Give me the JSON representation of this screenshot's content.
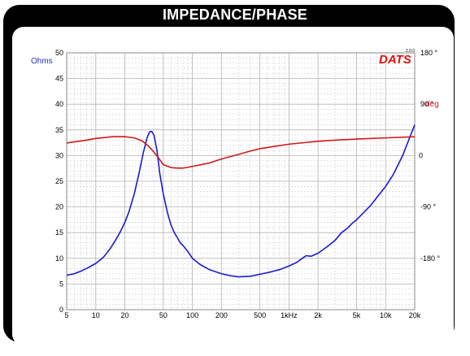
{
  "chart_data": {
    "type": "line",
    "title": "IMPEDANCE/PHASE",
    "brand": "DATS",
    "brand_version": "2.0.0",
    "x_scale": "log",
    "xlim": [
      5,
      20000
    ],
    "x_ticks": [
      {
        "v": 5,
        "label": "5"
      },
      {
        "v": 10,
        "label": "10"
      },
      {
        "v": 20,
        "label": "20"
      },
      {
        "v": 50,
        "label": "50"
      },
      {
        "v": 100,
        "label": "100"
      },
      {
        "v": 200,
        "label": "200"
      },
      {
        "v": 500,
        "label": "500"
      },
      {
        "v": 1000,
        "label": "1kHz"
      },
      {
        "v": 2000,
        "label": "2k"
      },
      {
        "v": 5000,
        "label": "5k"
      },
      {
        "v": 10000,
        "label": "10k"
      },
      {
        "v": 20000,
        "label": "20k"
      }
    ],
    "ylabel_left": "Ohms",
    "ylim_left": [
      0,
      50
    ],
    "y_ticks_left": [
      "0",
      "5",
      "10",
      "15",
      "20",
      "25",
      "30",
      "35",
      "40",
      "45",
      "50"
    ],
    "ylim_right": [
      -270,
      180
    ],
    "y_ticks_right": [
      {
        "v": 180,
        "label": "180 °",
        "color": "#000000"
      },
      {
        "v": 90,
        "label": "90 °",
        "color": "#000000"
      },
      {
        "v": 0,
        "label": "0",
        "color": "#000000"
      },
      {
        "v": -90,
        "label": "-90 °",
        "color": "#000000"
      },
      {
        "v": -180,
        "label": "-180 °",
        "color": "#000000"
      }
    ],
    "ylabel_right": "deg",
    "grid": true,
    "series": [
      {
        "name": "Impedance",
        "axis": "left",
        "color": "#1a1ad0",
        "points": [
          [
            5,
            6.7
          ],
          [
            6,
            7.0
          ],
          [
            7,
            7.5
          ],
          [
            8,
            8.0
          ],
          [
            10,
            9.0
          ],
          [
            12,
            10.2
          ],
          [
            14,
            11.8
          ],
          [
            16,
            13.5
          ],
          [
            18,
            15.2
          ],
          [
            20,
            17.0
          ],
          [
            22,
            19.0
          ],
          [
            25,
            22.5
          ],
          [
            28,
            26.5
          ],
          [
            31,
            30.5
          ],
          [
            34,
            33.5
          ],
          [
            36,
            34.6
          ],
          [
            38,
            34.7
          ],
          [
            40,
            34.0
          ],
          [
            43,
            31.0
          ],
          [
            46,
            26.5
          ],
          [
            50,
            22.5
          ],
          [
            55,
            19.0
          ],
          [
            60,
            16.5
          ],
          [
            65,
            15.0
          ],
          [
            70,
            14.0
          ],
          [
            75,
            13.0
          ],
          [
            80,
            12.5
          ],
          [
            90,
            11.3
          ],
          [
            100,
            10.0
          ],
          [
            120,
            8.8
          ],
          [
            150,
            7.8
          ],
          [
            200,
            7.0
          ],
          [
            250,
            6.6
          ],
          [
            300,
            6.4
          ],
          [
            400,
            6.5
          ],
          [
            500,
            6.9
          ],
          [
            600,
            7.2
          ],
          [
            800,
            7.8
          ],
          [
            1000,
            8.5
          ],
          [
            1200,
            9.2
          ],
          [
            1400,
            10.1
          ],
          [
            1500,
            10.5
          ],
          [
            1700,
            10.4
          ],
          [
            2000,
            11.0
          ],
          [
            2500,
            12.3
          ],
          [
            3000,
            13.5
          ],
          [
            3500,
            15.0
          ],
          [
            4000,
            15.8
          ],
          [
            4500,
            16.8
          ],
          [
            5000,
            17.5
          ],
          [
            6000,
            19.0
          ],
          [
            7000,
            20.3
          ],
          [
            8000,
            21.7
          ],
          [
            10000,
            24.0
          ],
          [
            12000,
            26.3
          ],
          [
            15000,
            30.0
          ],
          [
            20000,
            36.0
          ]
        ]
      },
      {
        "name": "Phase",
        "axis": "right",
        "color": "#cc1a1a",
        "points": [
          [
            5,
            22
          ],
          [
            8,
            27
          ],
          [
            10,
            30
          ],
          [
            15,
            33
          ],
          [
            20,
            33
          ],
          [
            25,
            31
          ],
          [
            30,
            26
          ],
          [
            35,
            17
          ],
          [
            40,
            6
          ],
          [
            45,
            -5
          ],
          [
            50,
            -16
          ],
          [
            60,
            -21
          ],
          [
            70,
            -22
          ],
          [
            80,
            -22
          ],
          [
            100,
            -19
          ],
          [
            150,
            -13
          ],
          [
            200,
            -6
          ],
          [
            300,
            2
          ],
          [
            400,
            8
          ],
          [
            500,
            12
          ],
          [
            700,
            16
          ],
          [
            1000,
            20
          ],
          [
            1500,
            23
          ],
          [
            2000,
            25
          ],
          [
            3000,
            27
          ],
          [
            5000,
            29
          ],
          [
            10000,
            31
          ],
          [
            20000,
            33
          ]
        ]
      }
    ]
  },
  "colors": {
    "frame": "#000000",
    "grid_major": "#b4b4b4",
    "grid_minor": "#d8d8d8",
    "ohms_label": "#2233cc",
    "phase_label": "#d02020",
    "brand": "#e01010"
  }
}
